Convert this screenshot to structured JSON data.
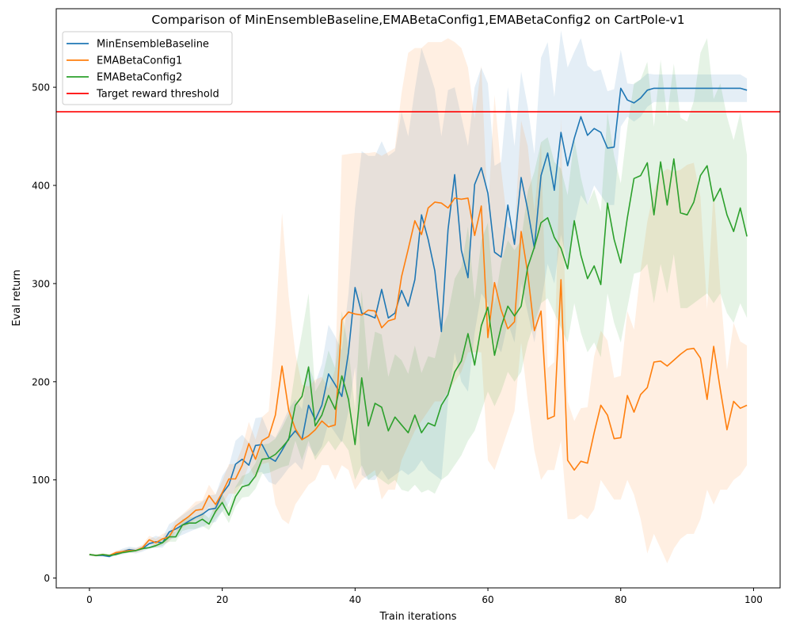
{
  "chart_data": {
    "type": "line",
    "title": "Comparison of MinEnsembleBaseline,EMABetaConfig1,EMABetaConfig2 on CartPole-v1",
    "xlabel": "Train iterations",
    "ylabel": "Eval return",
    "xlim": [
      -5,
      104
    ],
    "ylim": [
      -10,
      580
    ],
    "xticks": [
      0,
      20,
      40,
      60,
      80,
      100
    ],
    "yticks": [
      0,
      100,
      200,
      300,
      400,
      500
    ],
    "xtick_labels": [
      "0",
      "20",
      "40",
      "60",
      "80",
      "100"
    ],
    "ytick_labels": [
      "0",
      "100",
      "200",
      "300",
      "400",
      "500"
    ],
    "grid": false,
    "legend_position": "top-left",
    "legend": [
      "MinEnsembleBaseline",
      "EMABetaConfig1",
      "EMABetaConfig2",
      "Target reward threshold"
    ],
    "threshold": {
      "name": "Target reward threshold",
      "y": 475,
      "color": "#ff0000"
    },
    "series": [
      {
        "name": "MinEnsembleBaseline",
        "color": "#1f77b4",
        "values": [
          24,
          23,
          23,
          22,
          25,
          27,
          29,
          28,
          30,
          35,
          37,
          36,
          47,
          50,
          54,
          58,
          62,
          65,
          70,
          71,
          86,
          95,
          116,
          121,
          115,
          135,
          136,
          123,
          119,
          130,
          142,
          150,
          141,
          176,
          161,
          176,
          208,
          197,
          185,
          230,
          296,
          270,
          268,
          265,
          294,
          265,
          270,
          293,
          277,
          304,
          370,
          345,
          313,
          251,
          355,
          411,
          334,
          306,
          401,
          418,
          392,
          332,
          327,
          380,
          340,
          408,
          375,
          336,
          410,
          433,
          395,
          454,
          420,
          448,
          470,
          451,
          458,
          454,
          438,
          439,
          499,
          487,
          484,
          489,
          497,
          499,
          499,
          499,
          499,
          499,
          499,
          499,
          499,
          499,
          499,
          499,
          499,
          499,
          499,
          497
        ],
        "band": {
          "lower": [
            23,
            22,
            22,
            21,
            23,
            24,
            26,
            25,
            27,
            30,
            31,
            31,
            39,
            41,
            44,
            47,
            50,
            52,
            56,
            57,
            68,
            76,
            92,
            96,
            92,
            107,
            108,
            98,
            95,
            103,
            112,
            118,
            110,
            135,
            124,
            134,
            158,
            148,
            138,
            170,
            215,
            105,
            100,
            100,
            110,
            100,
            105,
            110,
            105,
            110,
            120,
            110,
            105,
            100,
            180,
            230,
            200,
            190,
            250,
            290,
            280,
            240,
            230,
            260,
            240,
            300,
            270,
            240,
            280,
            320,
            300,
            350,
            320,
            360,
            390,
            380,
            400,
            390,
            380,
            380,
            460,
            470,
            465,
            470,
            480,
            485,
            485,
            485,
            485,
            485,
            485,
            485,
            485,
            485,
            485,
            485,
            485,
            485,
            485,
            485
          ],
          "upper": [
            25,
            24,
            24,
            23,
            27,
            30,
            32,
            31,
            33,
            40,
            43,
            41,
            55,
            59,
            64,
            69,
            74,
            78,
            84,
            85,
            104,
            114,
            140,
            146,
            138,
            163,
            164,
            148,
            143,
            157,
            172,
            182,
            172,
            217,
            198,
            218,
            258,
            246,
            232,
            290,
            377,
            435,
            430,
            430,
            445,
            430,
            435,
            475,
            450,
            498,
            540,
            520,
            498,
            450,
            497,
            500,
            470,
            440,
            500,
            520,
            504,
            420,
            424,
            500,
            440,
            516,
            480,
            432,
            530,
            546,
            490,
            558,
            520,
            536,
            550,
            522,
            516,
            518,
            496,
            498,
            538,
            504,
            503,
            508,
            514,
            513,
            513,
            513,
            513,
            513,
            513,
            513,
            513,
            513,
            513,
            513,
            513,
            513,
            513,
            509
          ]
        }
      },
      {
        "name": "EMABetaConfig1",
        "color": "#ff7f0e",
        "values": [
          24,
          23,
          24,
          23,
          26,
          27,
          28,
          28,
          31,
          39,
          36,
          40,
          42,
          53,
          58,
          63,
          69,
          70,
          84,
          75,
          87,
          101,
          101,
          115,
          137,
          121,
          140,
          144,
          166,
          216,
          171,
          152,
          141,
          145,
          151,
          160,
          154,
          156,
          263,
          271,
          269,
          268,
          273,
          272,
          255,
          262,
          264,
          307,
          335,
          364,
          350,
          377,
          383,
          382,
          377,
          387,
          386,
          387,
          349,
          379,
          245,
          301,
          273,
          254,
          261,
          353,
          310,
          252,
          272,
          162,
          165,
          304,
          120,
          110,
          119,
          117,
          148,
          176,
          166,
          142,
          143,
          186,
          169,
          187,
          194,
          220,
          221,
          216,
          222,
          228,
          233,
          234,
          224,
          182,
          236,
          192,
          151,
          180,
          173,
          176
        ],
        "band": {
          "lower": [
            23,
            22,
            23,
            22,
            24,
            25,
            26,
            26,
            28,
            35,
            32,
            35,
            37,
            47,
            51,
            55,
            60,
            61,
            73,
            65,
            75,
            86,
            86,
            97,
            115,
            101,
            116,
            118,
            75,
            60,
            55,
            75,
            85,
            95,
            100,
            115,
            115,
            100,
            115,
            110,
            90,
            100,
            105,
            110,
            80,
            90,
            90,
            120,
            135,
            150,
            160,
            170,
            180,
            180,
            190,
            200,
            210,
            230,
            230,
            230,
            120,
            110,
            130,
            150,
            170,
            240,
            180,
            130,
            100,
            110,
            110,
            140,
            60,
            60,
            65,
            60,
            70,
            100,
            90,
            80,
            80,
            100,
            85,
            60,
            25,
            45,
            30,
            15,
            30,
            40,
            45,
            45,
            60,
            90,
            75,
            90,
            90,
            100,
            105,
            115
          ],
          "upper": [
            25,
            24,
            25,
            24,
            28,
            29,
            30,
            30,
            34,
            43,
            40,
            45,
            47,
            59,
            65,
            71,
            78,
            79,
            95,
            85,
            99,
            116,
            116,
            133,
            159,
            141,
            164,
            170,
            257,
            372,
            287,
            229,
            197,
            195,
            202,
            205,
            193,
            212,
            431,
            432,
            433,
            433,
            433,
            434,
            430,
            434,
            438,
            494,
            535,
            540,
            540,
            546,
            546,
            546,
            550,
            546,
            540,
            520,
            468,
            522,
            370,
            492,
            416,
            358,
            352,
            466,
            440,
            374,
            444,
            214,
            220,
            468,
            180,
            160,
            173,
            174,
            226,
            252,
            242,
            204,
            206,
            272,
            253,
            314,
            363,
            395,
            412,
            417,
            414,
            416,
            421,
            423,
            388,
            274,
            397,
            294,
            212,
            260,
            241,
            237
          ]
        }
      },
      {
        "name": "EMABetaConfig2",
        "color": "#2ca02c",
        "values": [
          24,
          23,
          24,
          23,
          24,
          26,
          27,
          28,
          30,
          31,
          33,
          36,
          42,
          42,
          54,
          56,
          56,
          60,
          55,
          68,
          77,
          64,
          83,
          93,
          95,
          104,
          121,
          122,
          126,
          133,
          141,
          176,
          185,
          215,
          155,
          166,
          186,
          172,
          206,
          182,
          136,
          204,
          155,
          178,
          174,
          150,
          164,
          156,
          148,
          166,
          148,
          158,
          155,
          176,
          187,
          210,
          221,
          249,
          217,
          257,
          276,
          227,
          256,
          277,
          267,
          277,
          317,
          337,
          362,
          367,
          347,
          336,
          315,
          364,
          329,
          305,
          318,
          299,
          382,
          345,
          321,
          367,
          407,
          410,
          423,
          370,
          424,
          380,
          427,
          372,
          370,
          383,
          410,
          420,
          384,
          397,
          370,
          353,
          377,
          348
        ],
        "band": {
          "lower": [
            23,
            22,
            23,
            22,
            23,
            25,
            26,
            27,
            29,
            30,
            31,
            33,
            37,
            37,
            48,
            50,
            50,
            53,
            49,
            60,
            68,
            56,
            73,
            82,
            83,
            91,
            106,
            107,
            110,
            113,
            115,
            140,
            120,
            140,
            120,
            130,
            140,
            130,
            140,
            130,
            100,
            115,
            100,
            105,
            100,
            95,
            100,
            90,
            88,
            95,
            87,
            90,
            86,
            100,
            105,
            115,
            125,
            140,
            150,
            170,
            190,
            175,
            190,
            210,
            200,
            210,
            240,
            260,
            280,
            285,
            270,
            255,
            240,
            280,
            250,
            230,
            240,
            225,
            290,
            260,
            240,
            275,
            310,
            312,
            320,
            280,
            320,
            290,
            330,
            275,
            275,
            280,
            285,
            290,
            280,
            290,
            270,
            260,
            280,
            265
          ],
          "upper": [
            25,
            24,
            25,
            24,
            25,
            27,
            28,
            29,
            31,
            32,
            35,
            39,
            47,
            47,
            60,
            62,
            62,
            67,
            61,
            76,
            86,
            72,
            93,
            104,
            107,
            117,
            136,
            137,
            142,
            153,
            167,
            212,
            250,
            290,
            190,
            202,
            232,
            214,
            272,
            234,
            172,
            293,
            210,
            251,
            248,
            205,
            228,
            222,
            208,
            237,
            209,
            226,
            224,
            252,
            269,
            305,
            317,
            358,
            284,
            344,
            362,
            279,
            322,
            344,
            334,
            344,
            394,
            414,
            444,
            449,
            424,
            417,
            390,
            448,
            408,
            380,
            396,
            373,
            474,
            430,
            402,
            459,
            504,
            508,
            526,
            460,
            528,
            470,
            524,
            469,
            465,
            486,
            535,
            550,
            488,
            504,
            470,
            446,
            474,
            431
          ]
        }
      }
    ]
  }
}
